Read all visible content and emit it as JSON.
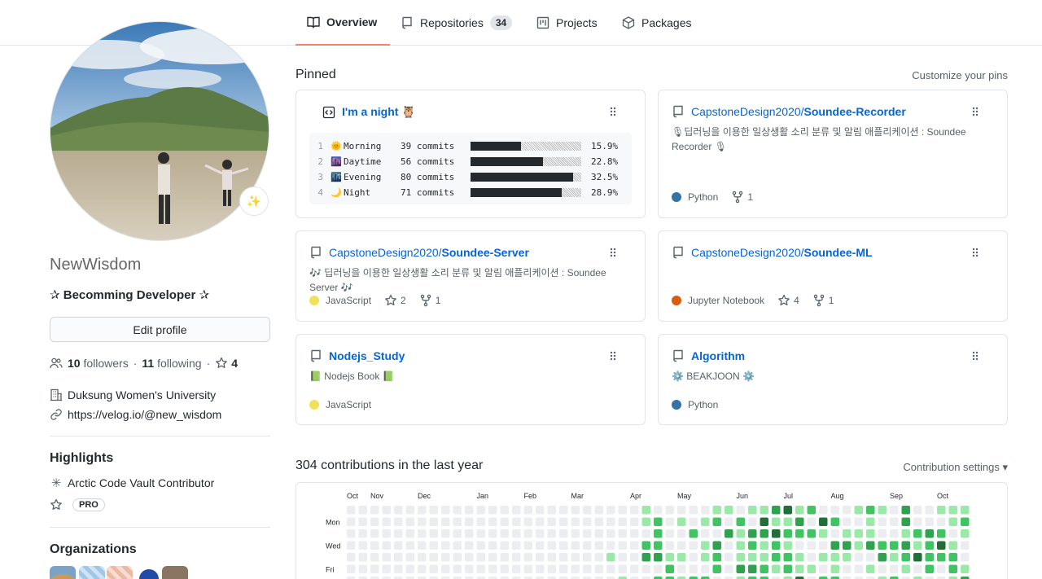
{
  "tabs": [
    {
      "label": "Overview",
      "icon": "book-icon",
      "active": true
    },
    {
      "label": "Repositories",
      "icon": "repo-icon",
      "count": "34"
    },
    {
      "label": "Projects",
      "icon": "project-icon"
    },
    {
      "label": "Packages",
      "icon": "package-icon"
    }
  ],
  "profile": {
    "status_emoji": "✨",
    "username": "NewWisdom",
    "bio": "✰ Becomming Developer ✰",
    "edit_label": "Edit profile",
    "followers": "10",
    "followers_label": "followers",
    "following": "11",
    "following_label": "following",
    "stars": "4",
    "separator": "·",
    "organization": "Duksung Women's University",
    "website": "https://velog.io/@new_wisdom",
    "highlights_title": "Highlights",
    "highlight_arctic": "Arctic Code Vault Contributor",
    "pro_label": "PRO",
    "organizations_title": "Organizations"
  },
  "pinned": {
    "title": "Pinned",
    "customize": "Customize your pins",
    "gist": {
      "title": "I'm a night 🦉",
      "rows": [
        {
          "n": "1",
          "emoji": "🌞",
          "label": "Morning",
          "commits": "39 commits",
          "pct": "15.9%",
          "frac": 0.159
        },
        {
          "n": "2",
          "emoji": "🌆",
          "label": "Daytime",
          "commits": "56 commits",
          "pct": "22.8%",
          "frac": 0.228
        },
        {
          "n": "3",
          "emoji": "🌃",
          "label": "Evening",
          "commits": "80 commits",
          "pct": "32.5%",
          "frac": 0.325
        },
        {
          "n": "4",
          "emoji": "🌙",
          "label": "Night",
          "commits": "71 commits",
          "pct": "28.9%",
          "frac": 0.289
        }
      ]
    },
    "repos": [
      {
        "owner": "CapstoneDesign2020/",
        "name": "Soundee-Recorder",
        "desc": "🎙딥러닝을 이용한 일상생활 소리 분류 및 알림 애플리케이션 : Soundee Recorder 🎙",
        "lang": "Python",
        "lang_color": "#3572A5",
        "stars": "",
        "forks": "1"
      },
      {
        "owner": "CapstoneDesign2020/",
        "name": "Soundee-Server",
        "desc": "🎶 딥러닝을 이용한 일상생활 소리 분류 및 알림 애플리케이션 : Soundee Server 🎶",
        "lang": "JavaScript",
        "lang_color": "#f1e05a",
        "stars": "2",
        "forks": "1"
      },
      {
        "owner": "CapstoneDesign2020/",
        "name": "Soundee-ML",
        "desc": "",
        "lang": "Jupyter Notebook",
        "lang_color": "#DA5B0B",
        "stars": "4",
        "forks": "1"
      },
      {
        "owner": "",
        "name": "Nodejs_Study",
        "desc": "📗 Nodejs Book 📗",
        "lang": "JavaScript",
        "lang_color": "#f1e05a",
        "stars": "",
        "forks": ""
      },
      {
        "owner": "",
        "name": "Algorithm",
        "desc": "⚙️ BEAKJOON ⚙️",
        "lang": "Python",
        "lang_color": "#3572A5",
        "stars": "",
        "forks": ""
      }
    ]
  },
  "contributions": {
    "title": "304 contributions in the last year",
    "settings": "Contribution settings ▾",
    "months": [
      "Oct",
      "Nov",
      "Dec",
      "Jan",
      "Feb",
      "Mar",
      "Apr",
      "May",
      "Jun",
      "Jul",
      "Aug",
      "Sep",
      "Oct"
    ],
    "days": [
      "Mon",
      "Wed",
      "Fri"
    ],
    "colors": [
      "#ebedf0",
      "#9be9a8",
      "#40c463",
      "#30a14e",
      "#216e39"
    ]
  }
}
